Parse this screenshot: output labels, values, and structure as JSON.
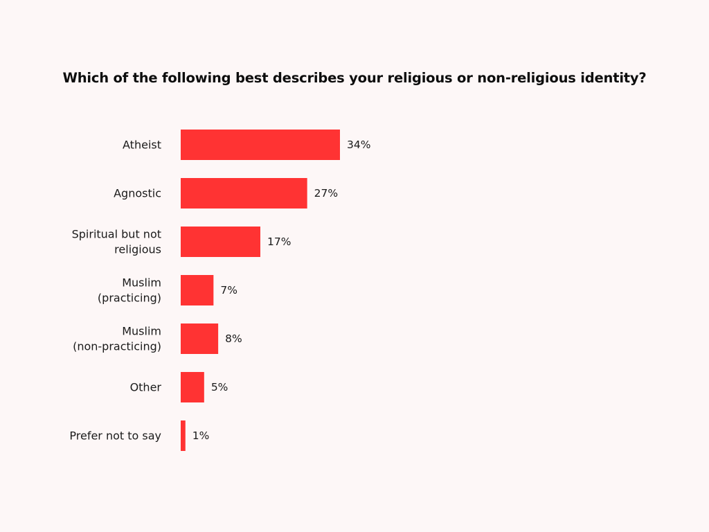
{
  "chart_data": {
    "type": "bar",
    "orientation": "horizontal",
    "title": "Which of the following best describes your religious or non-religious identity?",
    "categories": [
      "Atheist",
      "Agnostic",
      "Spiritual but not religious",
      "Muslim (practicing)",
      "Muslim (non-practicing)",
      "Other",
      "Prefer not to say"
    ],
    "category_lines": [
      [
        "Atheist"
      ],
      [
        "Agnostic"
      ],
      [
        "Spiritual but not",
        "religious"
      ],
      [
        "Muslim",
        "(practicing)"
      ],
      [
        "Muslim",
        "(non-practicing)"
      ],
      [
        "Other"
      ],
      [
        "Prefer not to say"
      ]
    ],
    "values": [
      34,
      27,
      17,
      7,
      8,
      5,
      1
    ],
    "value_labels": [
      "34%",
      "27%",
      "17%",
      "7%",
      "8%",
      "5%",
      "1%"
    ],
    "unit": "%",
    "xlim": [
      0,
      100
    ],
    "grid": false,
    "legend": "none",
    "bar_color": "#ff3333",
    "background_color": "#fdf7f7"
  }
}
